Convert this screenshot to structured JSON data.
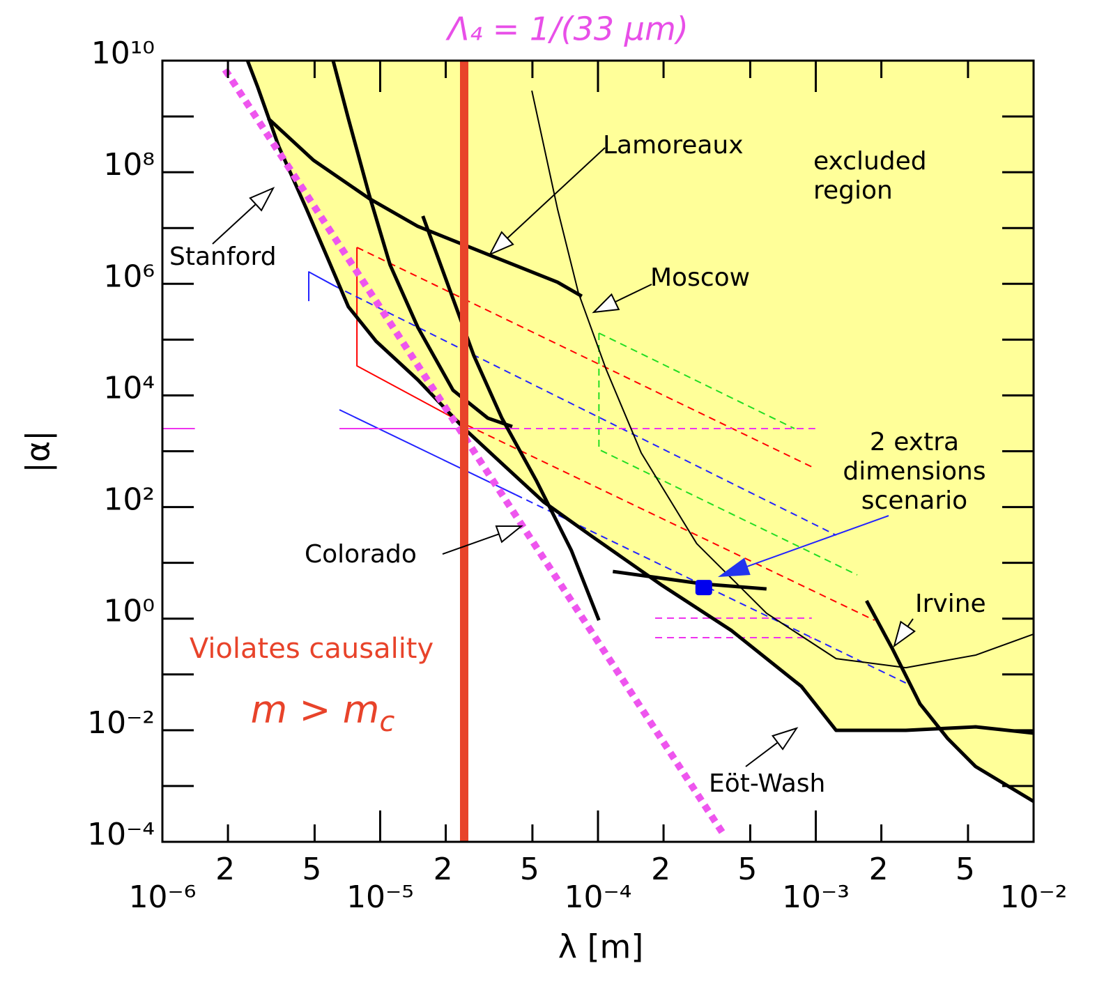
{
  "chart_data": {
    "type": "line",
    "title": "Λ₄ = 1/(33 µm)",
    "xlabel": "λ  [m]",
    "ylabel": "|α|",
    "xscale": "log",
    "yscale": "log",
    "xlim": [
      1e-06,
      0.01
    ],
    "ylim": [
      0.0001,
      10000000000.0
    ],
    "xticks": [
      {
        "value": 1e-06,
        "label": "10⁻⁶"
      },
      {
        "value": 2e-06,
        "label": "2"
      },
      {
        "value": 5e-06,
        "label": "5"
      },
      {
        "value": 1e-05,
        "label": "10⁻⁵"
      },
      {
        "value": 2e-05,
        "label": "2"
      },
      {
        "value": 5e-05,
        "label": "5"
      },
      {
        "value": 0.0001,
        "label": "10⁻⁴"
      },
      {
        "value": 0.0002,
        "label": "2"
      },
      {
        "value": 0.0005,
        "label": "5"
      },
      {
        "value": 0.001,
        "label": "10⁻³"
      },
      {
        "value": 0.002,
        "label": "2"
      },
      {
        "value": 0.005,
        "label": "5"
      },
      {
        "value": 0.01,
        "label": "10⁻²"
      }
    ],
    "yticks": [
      {
        "value": 10000000000.0,
        "label": "10¹⁰"
      },
      {
        "value": 100000000.0,
        "label": "10⁸"
      },
      {
        "value": 1000000.0,
        "label": "10⁶"
      },
      {
        "value": 10000.0,
        "label": "10⁴"
      },
      {
        "value": 100,
        "label": "10²"
      },
      {
        "value": 1,
        "label": "10⁰"
      },
      {
        "value": 0.01,
        "label": "10⁻²"
      },
      {
        "value": 0.0001,
        "label": "10⁻⁴"
      }
    ],
    "yminor_ticks": [
      1000000000.0,
      10000000.0,
      100000.0,
      1000,
      10,
      0.1,
      0.001
    ],
    "excluded_region": {
      "color": "#ffff99",
      "x": [
        2.46e-06,
        2.74e-06,
        3.42e-06,
        4.59e-06,
        5.73e-06,
        7.14e-06,
        9.59e-06,
        1.49e-05,
        2.43e-05,
        3.62e-05,
        5.62e-05,
        9.42e-05,
        0.000197,
        0.000411,
        0.000859,
        0.00124,
        0.00259,
        0.00361,
        0.00542,
        0.01
      ],
      "values": [
        10000000000.0,
        3350000000.0,
        291000000.0,
        21900000.0,
        2920000.0,
        390000.0,
        93000.0,
        19000.0,
        2550,
        604,
        124,
        29.5,
        3.94,
        0.608,
        0.061,
        0.00995,
        0.00995,
        0.0107,
        0.00223,
        0.00053
      ]
    },
    "series": [
      {
        "color": "#ff0000",
        "style": "dashed",
        "width": 2,
        "x": [
          7.82e-06,
          0.000959
        ],
        "values": [
          4500000.0,
          524
        ]
      },
      {
        "color": "#ff0000",
        "style": "solid",
        "width": 2,
        "x": [
          7.82e-06,
          7.82e-06,
          2.5e-05
        ],
        "values": [
          4500000.0,
          33900.0,
          2940
        ]
      },
      {
        "color": "#ff0000",
        "style": "dashed",
        "width": 2,
        "x": [
          2.5e-05,
          0.00186
        ],
        "values": [
          2940,
          0.935
        ]
      },
      {
        "color": "#2222ff",
        "style": "solid",
        "width": 2,
        "x": [
          4.7e-06,
          4.7e-06,
          6.17e-06
        ],
        "values": [
          490000.0,
          1640000.0,
          920000.0
        ]
      },
      {
        "color": "#2222ff",
        "style": "dashed",
        "width": 2,
        "x": [
          6.17e-06,
          0.00124
        ],
        "values": [
          920000.0,
          31.3
        ]
      },
      {
        "color": "#2222ff",
        "style": "solid",
        "width": 2,
        "x": [
          6.5e-06,
          4.19e-05
        ],
        "values": [
          5540,
          166
        ]
      },
      {
        "color": "#2222ff",
        "style": "dashed",
        "width": 2,
        "x": [
          4.19e-05,
          0.00259
        ],
        "values": [
          166,
          0.0703
        ]
      },
      {
        "color": "#22dd22",
        "style": "dashed",
        "width": 2,
        "x": [
          0.000101,
          0.000101,
          0.00155
        ],
        "values": [
          131000.0,
          1074,
          6.07
        ]
      },
      {
        "color": "#22dd22",
        "style": "dashed",
        "width": 2,
        "x": [
          0.000101,
          0.000798
        ],
        "values": [
          131000.0,
          2550
        ]
      },
      {
        "color": "#ee33ee",
        "style": "solid",
        "width": 2,
        "x": [
          1e-06,
          1.41e-06
        ],
        "values": [
          2550,
          2550
        ]
      },
      {
        "color": "#ee33ee",
        "style": "solid",
        "width": 2,
        "x": [
          6.5e-06,
          4.04e-05
        ],
        "values": [
          2550,
          2550
        ]
      },
      {
        "color": "#ee33ee",
        "style": "dashed",
        "width": 2,
        "x": [
          4.04e-05,
          0.000995
        ],
        "values": [
          2550,
          2550
        ]
      },
      {
        "color": "#ee33ee",
        "style": "dashed",
        "width": 2,
        "x": [
          0.000183,
          0.000959
        ],
        "values": [
          1.02,
          1.02
        ]
      },
      {
        "color": "#ee33ee",
        "style": "dashed",
        "width": 2,
        "x": [
          0.000183,
          0.000959
        ],
        "values": [
          0.456,
          0.456
        ]
      },
      {
        "color": "#000000",
        "style": "solid",
        "width": 2,
        "x": [
          4.97e-05,
          6.52e-05,
          8.13e-05,
          0.000109,
          0.000158,
          0.000284,
          0.000594,
          0.00124,
          0.00259,
          0.00542,
          0.01
        ],
        "values": [
          2900000000.0,
          21900000.0,
          690000.0,
          29300.0,
          931,
          22.1,
          1.25,
          0.192,
          0.132,
          0.222,
          0.527
        ]
      },
      {
        "color": "#000000",
        "style": "solid",
        "width": 5,
        "x": [
          2.46e-06,
          2.74e-06,
          3.42e-06,
          4.59e-06,
          5.73e-06,
          7.14e-06,
          9.59e-06,
          1.49e-05,
          2.43e-05,
          3.62e-05,
          5.62e-05,
          9.42e-05,
          0.000197,
          0.000411,
          0.000859,
          0.00124,
          0.00259,
          0.00542,
          0.01
        ],
        "values": [
          10000000000.0,
          3350000000.0,
          291000000.0,
          21900000.0,
          2920000.0,
          390000.0,
          93000.0,
          19000.0,
          2550,
          604,
          124,
          29.5,
          3.94,
          0.608,
          0.061,
          0.00995,
          0.00995,
          0.0115,
          0.00887
        ]
      },
      {
        "color": "#000000",
        "style": "solid",
        "width": 5,
        "x": [
          6.08e-06,
          7.14e-06,
          8.91e-06,
          1.11e-05,
          1.49e-05,
          2.16e-05,
          3.12e-05,
          4.04e-05
        ],
        "values": [
          10000000000.0,
          920000000.0,
          38900000.0,
          2190000.0,
          165000.0,
          12400.0,
          3920,
          2770
        ]
      },
      {
        "color": "#000000",
        "style": "solid",
        "width": 5,
        "x": [
          1.57e-05,
          2e-05,
          2.69e-05,
          3.62e-05,
          5.22e-05,
          7.55e-05,
          0.000101
        ],
        "values": [
          16400000.0,
          1230000.0,
          52000.0,
          3920,
          294,
          16.6,
          0.935
        ]
      },
      {
        "color": "#000000",
        "style": "solid",
        "width": 5,
        "x": [
          3.06e-06,
          4.94e-06,
          8.91e-06,
          1.49e-05,
          3.12e-05,
          6.52e-05,
          8.43e-05
        ],
        "values": [
          920000000.0,
          164000000.0,
          33700000.0,
          10700000.0,
          3370000.0,
          1070000.0,
          600000.0
        ]
      },
      {
        "color": "#000000",
        "style": "solid",
        "width": 5,
        "x": [
          0.000117,
          0.000306,
          0.000594
        ],
        "values": [
          7,
          4.18,
          3.41
        ]
      },
      {
        "color": "#000000",
        "style": "solid",
        "width": 5,
        "x": [
          0.00171,
          0.00224,
          0.00301,
          0.00404,
          0.00542,
          0.01
        ],
        "values": [
          2.09,
          0.296,
          0.0297,
          0.00705,
          0.00223,
          0.00053
        ]
      },
      {
        "color": "#ee55ee",
        "style": "dotted",
        "width": 10,
        "x": [
          1.94e-06,
          0.000382
        ],
        "values": [
          6900000000.0,
          0.000126
        ]
      },
      {
        "color": "#e8432a",
        "style": "solid",
        "width": 12,
        "x": [
          2.43e-05,
          2.43e-05
        ],
        "values": [
          10000000000.0,
          0.0001
        ]
      }
    ],
    "markers": [
      {
        "color": "#0000ee",
        "x": 0.000306,
        "value": 3.61
      }
    ],
    "annotations": [
      [
        "Lamoreaux"
      ],
      [
        "excluded",
        "region"
      ],
      [
        "Stanford"
      ],
      [
        "Moscow"
      ],
      [
        "2  extra",
        "dimensions",
        "scenario"
      ],
      [
        "Colorado"
      ],
      [
        "Irvine"
      ],
      [
        "Eöt-Wash"
      ]
    ],
    "causality_label": {
      "text": "Violates causality",
      "color": "#e8432a"
    },
    "mass_label": {
      "text": "m > m",
      "subscript": "c",
      "color": "#e8432a"
    }
  }
}
